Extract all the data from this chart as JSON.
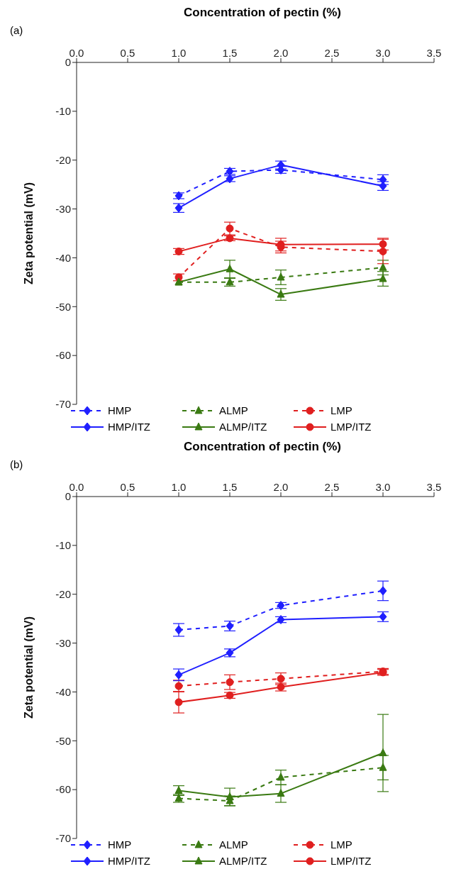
{
  "chart_data": [
    {
      "type": "line",
      "xlabel": "Concentration of pectin (%)",
      "ylabel": "Zeta potential (mV)",
      "annotations": [
        "(a)"
      ],
      "x": [
        1.0,
        1.5,
        2.0,
        3.0
      ],
      "xlim": [
        0,
        3.5
      ],
      "xticks": [
        {
          "value": 0,
          "label": "0.0"
        },
        {
          "value": 0.5,
          "label": "0.5"
        },
        {
          "value": 1,
          "label": "1.0"
        },
        {
          "value": 1.5,
          "label": "1.5"
        },
        {
          "value": 2,
          "label": "2.0"
        },
        {
          "value": 2.5,
          "label": "2.5"
        },
        {
          "value": 3,
          "label": "3.0"
        },
        {
          "value": 3.5,
          "label": "3.5"
        }
      ],
      "ylim": [
        -70,
        0
      ],
      "yticks": [
        0,
        -10,
        -20,
        -30,
        -40,
        -50,
        -60,
        -70
      ],
      "grid": false,
      "legend": "bottom",
      "series": [
        {
          "name": "HMP",
          "color": "#1f1fff",
          "marker": "diamond",
          "line_style": "dashed",
          "values": [
            -27.3,
            -22.3,
            -22.0,
            -24.0
          ],
          "errors": [
            0.6,
            0.6,
            0.7,
            1.0
          ]
        },
        {
          "name": "ALMP",
          "color": "#3a7a12",
          "marker": "triangle",
          "line_style": "dashed",
          "values": [
            -45.0,
            -45.0,
            -44.0,
            -42.0
          ],
          "errors": [
            null,
            0.8,
            1.5,
            1.5
          ]
        },
        {
          "name": "LMP",
          "color": "#e01f1f",
          "marker": "circle",
          "line_style": "dashed",
          "values": [
            -44.0,
            -34.0,
            -37.8,
            -38.7
          ],
          "errors": [
            0.7,
            1.3,
            1.2,
            2.5
          ]
        },
        {
          "name": "HMP/ITZ",
          "color": "#1f1fff",
          "marker": "diamond",
          "line_style": "solid",
          "values": [
            -29.8,
            -23.8,
            -21.0,
            -25.3
          ],
          "errors": [
            0.9,
            0.6,
            0.8,
            0.9
          ]
        },
        {
          "name": "ALMP/ITZ",
          "color": "#3a7a12",
          "marker": "triangle",
          "line_style": "solid",
          "values": [
            -45.0,
            -42.3,
            -47.5,
            -44.3
          ],
          "errors": [
            null,
            1.8,
            1.2,
            1.5
          ]
        },
        {
          "name": "LMP/ITZ",
          "color": "#e01f1f",
          "marker": "circle",
          "line_style": "solid",
          "values": [
            -38.7,
            -36.0,
            -37.3,
            -37.2
          ],
          "errors": [
            0.6,
            0.5,
            1.3,
            1.2
          ]
        }
      ]
    },
    {
      "type": "line",
      "xlabel": "Concentration of pectin (%)",
      "ylabel": "Zeta potential (mV)",
      "annotations": [
        "(b)"
      ],
      "x": [
        1.0,
        1.5,
        2.0,
        3.0
      ],
      "xlim": [
        0,
        3.5
      ],
      "xticks": [
        {
          "value": 0,
          "label": "0.0"
        },
        {
          "value": 0.5,
          "label": "0.5"
        },
        {
          "value": 1,
          "label": "1.0"
        },
        {
          "value": 1.5,
          "label": "1.5"
        },
        {
          "value": 2,
          "label": "2.0"
        },
        {
          "value": 2.5,
          "label": "2.5"
        },
        {
          "value": 3,
          "label": "3.0"
        },
        {
          "value": 3.5,
          "label": "3.5"
        }
      ],
      "ylim": [
        -70,
        0
      ],
      "yticks": [
        0,
        -10,
        -20,
        -30,
        -40,
        -50,
        -60,
        -70
      ],
      "grid": false,
      "legend": "bottom",
      "series": [
        {
          "name": "HMP",
          "color": "#1f1fff",
          "marker": "diamond",
          "line_style": "dashed",
          "values": [
            -27.3,
            -26.5,
            -22.3,
            -19.3
          ],
          "errors": [
            1.3,
            1.0,
            0.6,
            2.0
          ]
        },
        {
          "name": "ALMP",
          "color": "#3a7a12",
          "marker": "triangle",
          "line_style": "dashed",
          "values": [
            -61.8,
            -62.3,
            -57.5,
            -55.5
          ],
          "errors": [
            0.8,
            1.0,
            1.5,
            2.5
          ]
        },
        {
          "name": "LMP",
          "color": "#e01f1f",
          "marker": "circle",
          "line_style": "dashed",
          "values": [
            -38.8,
            -38.0,
            -37.3,
            -35.8
          ],
          "errors": [
            1.2,
            1.5,
            1.2,
            0.6
          ]
        },
        {
          "name": "HMP/ITZ",
          "color": "#1f1fff",
          "marker": "diamond",
          "line_style": "solid",
          "values": [
            -36.5,
            -32.0,
            -25.2,
            -24.6
          ],
          "errors": [
            1.2,
            0.8,
            0.6,
            1.0
          ]
        },
        {
          "name": "ALMP/ITZ",
          "color": "#3a7a12",
          "marker": "triangle",
          "line_style": "solid",
          "values": [
            -60.2,
            -61.5,
            -60.8,
            -52.5
          ],
          "errors": [
            1.0,
            1.8,
            1.8,
            7.9
          ]
        },
        {
          "name": "LMP/ITZ",
          "color": "#e01f1f",
          "marker": "circle",
          "line_style": "solid",
          "values": [
            -42.1,
            -40.7,
            -39.0,
            -36.0
          ],
          "errors": [
            2.2,
            0.6,
            0.8,
            0.6
          ]
        }
      ]
    }
  ]
}
